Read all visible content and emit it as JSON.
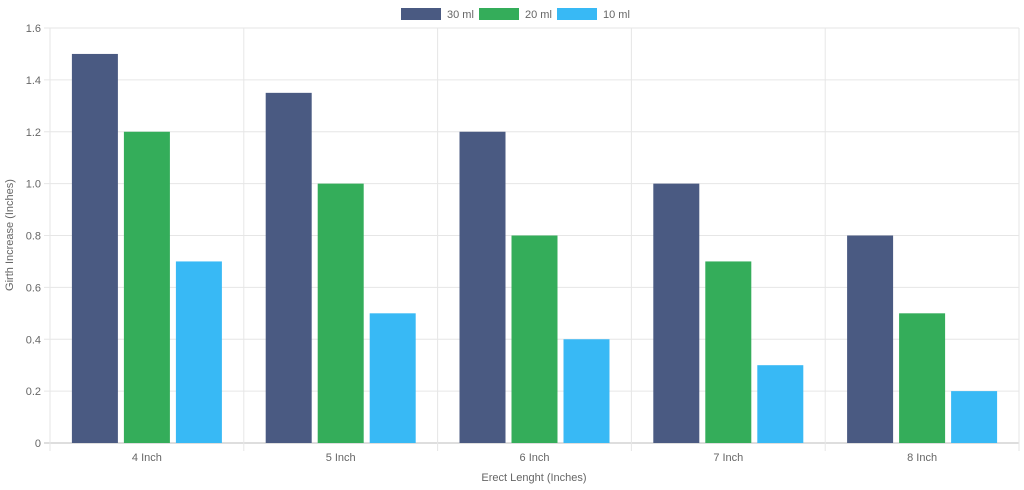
{
  "chart_data": {
    "type": "bar",
    "title": "",
    "xlabel": "Erect Lenght (Inches)",
    "ylabel": "Girth Increase (Inches)",
    "categories": [
      "4 Inch",
      "5 Inch",
      "6 Inch",
      "7 Inch",
      "8 Inch"
    ],
    "series": [
      {
        "name": "30 ml",
        "color": "#4a5a82",
        "values": [
          1.5,
          1.35,
          1.2,
          1.0,
          0.8
        ]
      },
      {
        "name": "20 ml",
        "color": "#34ad5a",
        "values": [
          1.2,
          1.0,
          0.8,
          0.7,
          0.5
        ]
      },
      {
        "name": "10 ml",
        "color": "#38b9f5",
        "values": [
          0.7,
          0.5,
          0.4,
          0.3,
          0.2
        ]
      }
    ],
    "ylim": [
      0,
      1.6
    ],
    "yticks": [
      "0",
      "0.2",
      "0.4",
      "0.6",
      "0.8",
      "1.0",
      "1.2",
      "1.4",
      "1.6"
    ],
    "grid": true,
    "legend_position": "top-center"
  }
}
